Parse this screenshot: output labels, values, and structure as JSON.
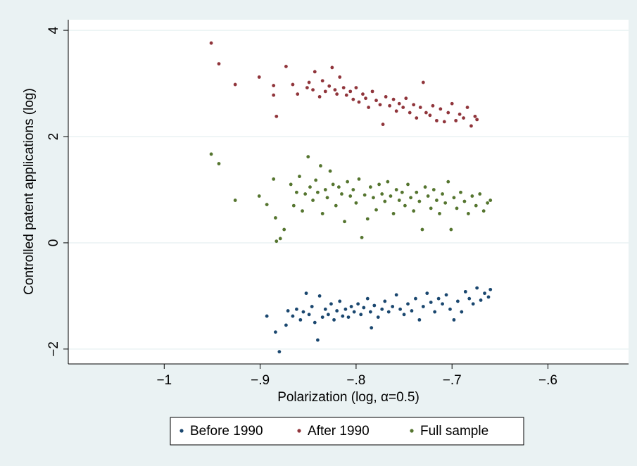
{
  "chart_data": {
    "type": "scatter",
    "x_label": "Polarization (log, α=0.5)",
    "y_label": "Controlled patent applications (log)",
    "xlim": [
      -1.1,
      -0.516
    ],
    "ylim": [
      -2.28,
      4.2
    ],
    "xticks": [
      {
        "value": -1,
        "label": "−1"
      },
      {
        "value": -0.9,
        "label": "−.9"
      },
      {
        "value": -0.8,
        "label": "−.8"
      },
      {
        "value": -0.7,
        "label": "−.7"
      },
      {
        "value": -0.6,
        "label": "−.6"
      }
    ],
    "yticks": [
      {
        "value": -2,
        "label": "−2"
      },
      0,
      2,
      4
    ],
    "grid": true,
    "legend": "bottom",
    "series": [
      {
        "name": "Before 1990",
        "color": "#1a476f",
        "x": [
          -0.893,
          -0.884,
          -0.88,
          -0.873,
          -0.871,
          -0.84,
          -0.784,
          -0.866,
          -0.862,
          -0.858,
          -0.855,
          -0.852,
          -0.849,
          -0.846,
          -0.843,
          -0.838,
          -0.835,
          -0.832,
          -0.829,
          -0.826,
          -0.823,
          -0.82,
          -0.817,
          -0.814,
          -0.811,
          -0.808,
          -0.805,
          -0.802,
          -0.798,
          -0.795,
          -0.792,
          -0.788,
          -0.785,
          -0.781,
          -0.777,
          -0.773,
          -0.77,
          -0.766,
          -0.762,
          -0.758,
          -0.754,
          -0.75,
          -0.746,
          -0.742,
          -0.738,
          -0.734,
          -0.73,
          -0.726,
          -0.722,
          -0.718,
          -0.714,
          -0.71,
          -0.706,
          -0.702,
          -0.698,
          -0.694,
          -0.69,
          -0.686,
          -0.682,
          -0.678,
          -0.674,
          -0.67,
          -0.666,
          -0.662,
          -0.66
        ],
        "values": [
          -1.38,
          -1.68,
          -2.05,
          -1.55,
          -1.28,
          -1.83,
          -1.6,
          -1.38,
          -1.25,
          -1.45,
          -1.3,
          -0.95,
          -1.35,
          -1.2,
          -1.5,
          -1.0,
          -1.4,
          -1.25,
          -1.35,
          -1.15,
          -1.45,
          -1.28,
          -1.1,
          -1.38,
          -1.25,
          -1.4,
          -1.2,
          -1.3,
          -1.15,
          -1.35,
          -1.22,
          -1.05,
          -1.3,
          -1.18,
          -1.4,
          -1.25,
          -1.1,
          -1.3,
          -1.2,
          -0.98,
          -1.25,
          -1.35,
          -1.15,
          -1.28,
          -1.05,
          -1.45,
          -1.2,
          -0.95,
          -1.12,
          -1.3,
          -1.05,
          -1.15,
          -0.98,
          -1.25,
          -1.45,
          -1.1,
          -1.3,
          -0.92,
          -1.05,
          -1.15,
          -0.85,
          -1.08,
          -0.95,
          -1.02,
          -0.88
        ]
      },
      {
        "name": "After 1990",
        "color": "#90353b",
        "x": [
          -0.951,
          -0.943,
          -0.926,
          -0.901,
          -0.886,
          -0.886,
          -0.883,
          -0.873,
          -0.866,
          -0.861,
          -0.851,
          -0.849,
          -0.845,
          -0.843,
          -0.838,
          -0.835,
          -0.832,
          -0.828,
          -0.825,
          -0.822,
          -0.82,
          -0.817,
          -0.813,
          -0.81,
          -0.806,
          -0.803,
          -0.8,
          -0.797,
          -0.793,
          -0.79,
          -0.787,
          -0.783,
          -0.779,
          -0.775,
          -0.772,
          -0.769,
          -0.765,
          -0.761,
          -0.758,
          -0.755,
          -0.751,
          -0.748,
          -0.744,
          -0.74,
          -0.737,
          -0.733,
          -0.73,
          -0.727,
          -0.723,
          -0.72,
          -0.716,
          -0.712,
          -0.708,
          -0.704,
          -0.7,
          -0.696,
          -0.692,
          -0.688,
          -0.684,
          -0.68,
          -0.676,
          -0.674
        ],
        "values": [
          3.76,
          3.37,
          2.98,
          3.12,
          2.96,
          2.78,
          2.38,
          3.32,
          2.98,
          2.8,
          2.92,
          3.02,
          2.88,
          3.22,
          2.75,
          3.05,
          2.85,
          2.95,
          3.3,
          2.88,
          2.8,
          3.12,
          2.92,
          2.78,
          2.85,
          2.7,
          2.92,
          2.65,
          2.8,
          2.72,
          2.55,
          2.85,
          2.68,
          2.6,
          2.23,
          2.75,
          2.58,
          2.7,
          2.48,
          2.62,
          2.55,
          2.72,
          2.45,
          2.6,
          2.35,
          2.55,
          3.02,
          2.45,
          2.4,
          2.58,
          2.3,
          2.52,
          2.28,
          2.45,
          2.62,
          2.3,
          2.42,
          2.35,
          2.55,
          2.2,
          2.38,
          2.32
        ]
      },
      {
        "name": "Full sample",
        "color": "#55752f",
        "x": [
          -0.951,
          -0.943,
          -0.926,
          -0.901,
          -0.893,
          -0.886,
          -0.883,
          -0.879,
          -0.884,
          -0.875,
          -0.868,
          -0.865,
          -0.862,
          -0.859,
          -0.856,
          -0.853,
          -0.85,
          -0.848,
          -0.845,
          -0.842,
          -0.84,
          -0.837,
          -0.835,
          -0.832,
          -0.83,
          -0.827,
          -0.824,
          -0.821,
          -0.818,
          -0.815,
          -0.812,
          -0.809,
          -0.806,
          -0.803,
          -0.8,
          -0.797,
          -0.794,
          -0.791,
          -0.788,
          -0.785,
          -0.782,
          -0.779,
          -0.776,
          -0.773,
          -0.77,
          -0.767,
          -0.764,
          -0.761,
          -0.758,
          -0.755,
          -0.752,
          -0.749,
          -0.746,
          -0.743,
          -0.74,
          -0.737,
          -0.734,
          -0.731,
          -0.728,
          -0.725,
          -0.722,
          -0.719,
          -0.716,
          -0.713,
          -0.71,
          -0.707,
          -0.704,
          -0.701,
          -0.698,
          -0.695,
          -0.691,
          -0.687,
          -0.683,
          -0.679,
          -0.675,
          -0.671,
          -0.667,
          -0.663,
          -0.66
        ],
        "values": [
          1.67,
          1.49,
          0.8,
          0.88,
          0.72,
          1.2,
          0.03,
          0.08,
          0.47,
          0.25,
          1.1,
          0.7,
          0.95,
          1.25,
          0.6,
          0.92,
          1.62,
          1.05,
          0.8,
          1.18,
          0.95,
          1.45,
          0.55,
          1.0,
          0.85,
          1.35,
          1.1,
          0.7,
          1.05,
          0.92,
          0.4,
          1.15,
          0.88,
          1.0,
          0.75,
          1.2,
          0.1,
          0.9,
          0.45,
          1.05,
          0.85,
          0.62,
          1.1,
          0.92,
          0.78,
          1.15,
          0.88,
          0.55,
          1.0,
          0.8,
          0.95,
          0.7,
          1.1,
          0.85,
          0.6,
          0.95,
          0.78,
          0.25,
          1.05,
          0.88,
          0.65,
          1.0,
          0.8,
          0.55,
          0.92,
          0.75,
          1.15,
          0.25,
          0.85,
          0.65,
          0.95,
          0.78,
          0.55,
          0.88,
          0.7,
          0.92,
          0.6,
          0.75,
          0.8
        ]
      }
    ]
  }
}
